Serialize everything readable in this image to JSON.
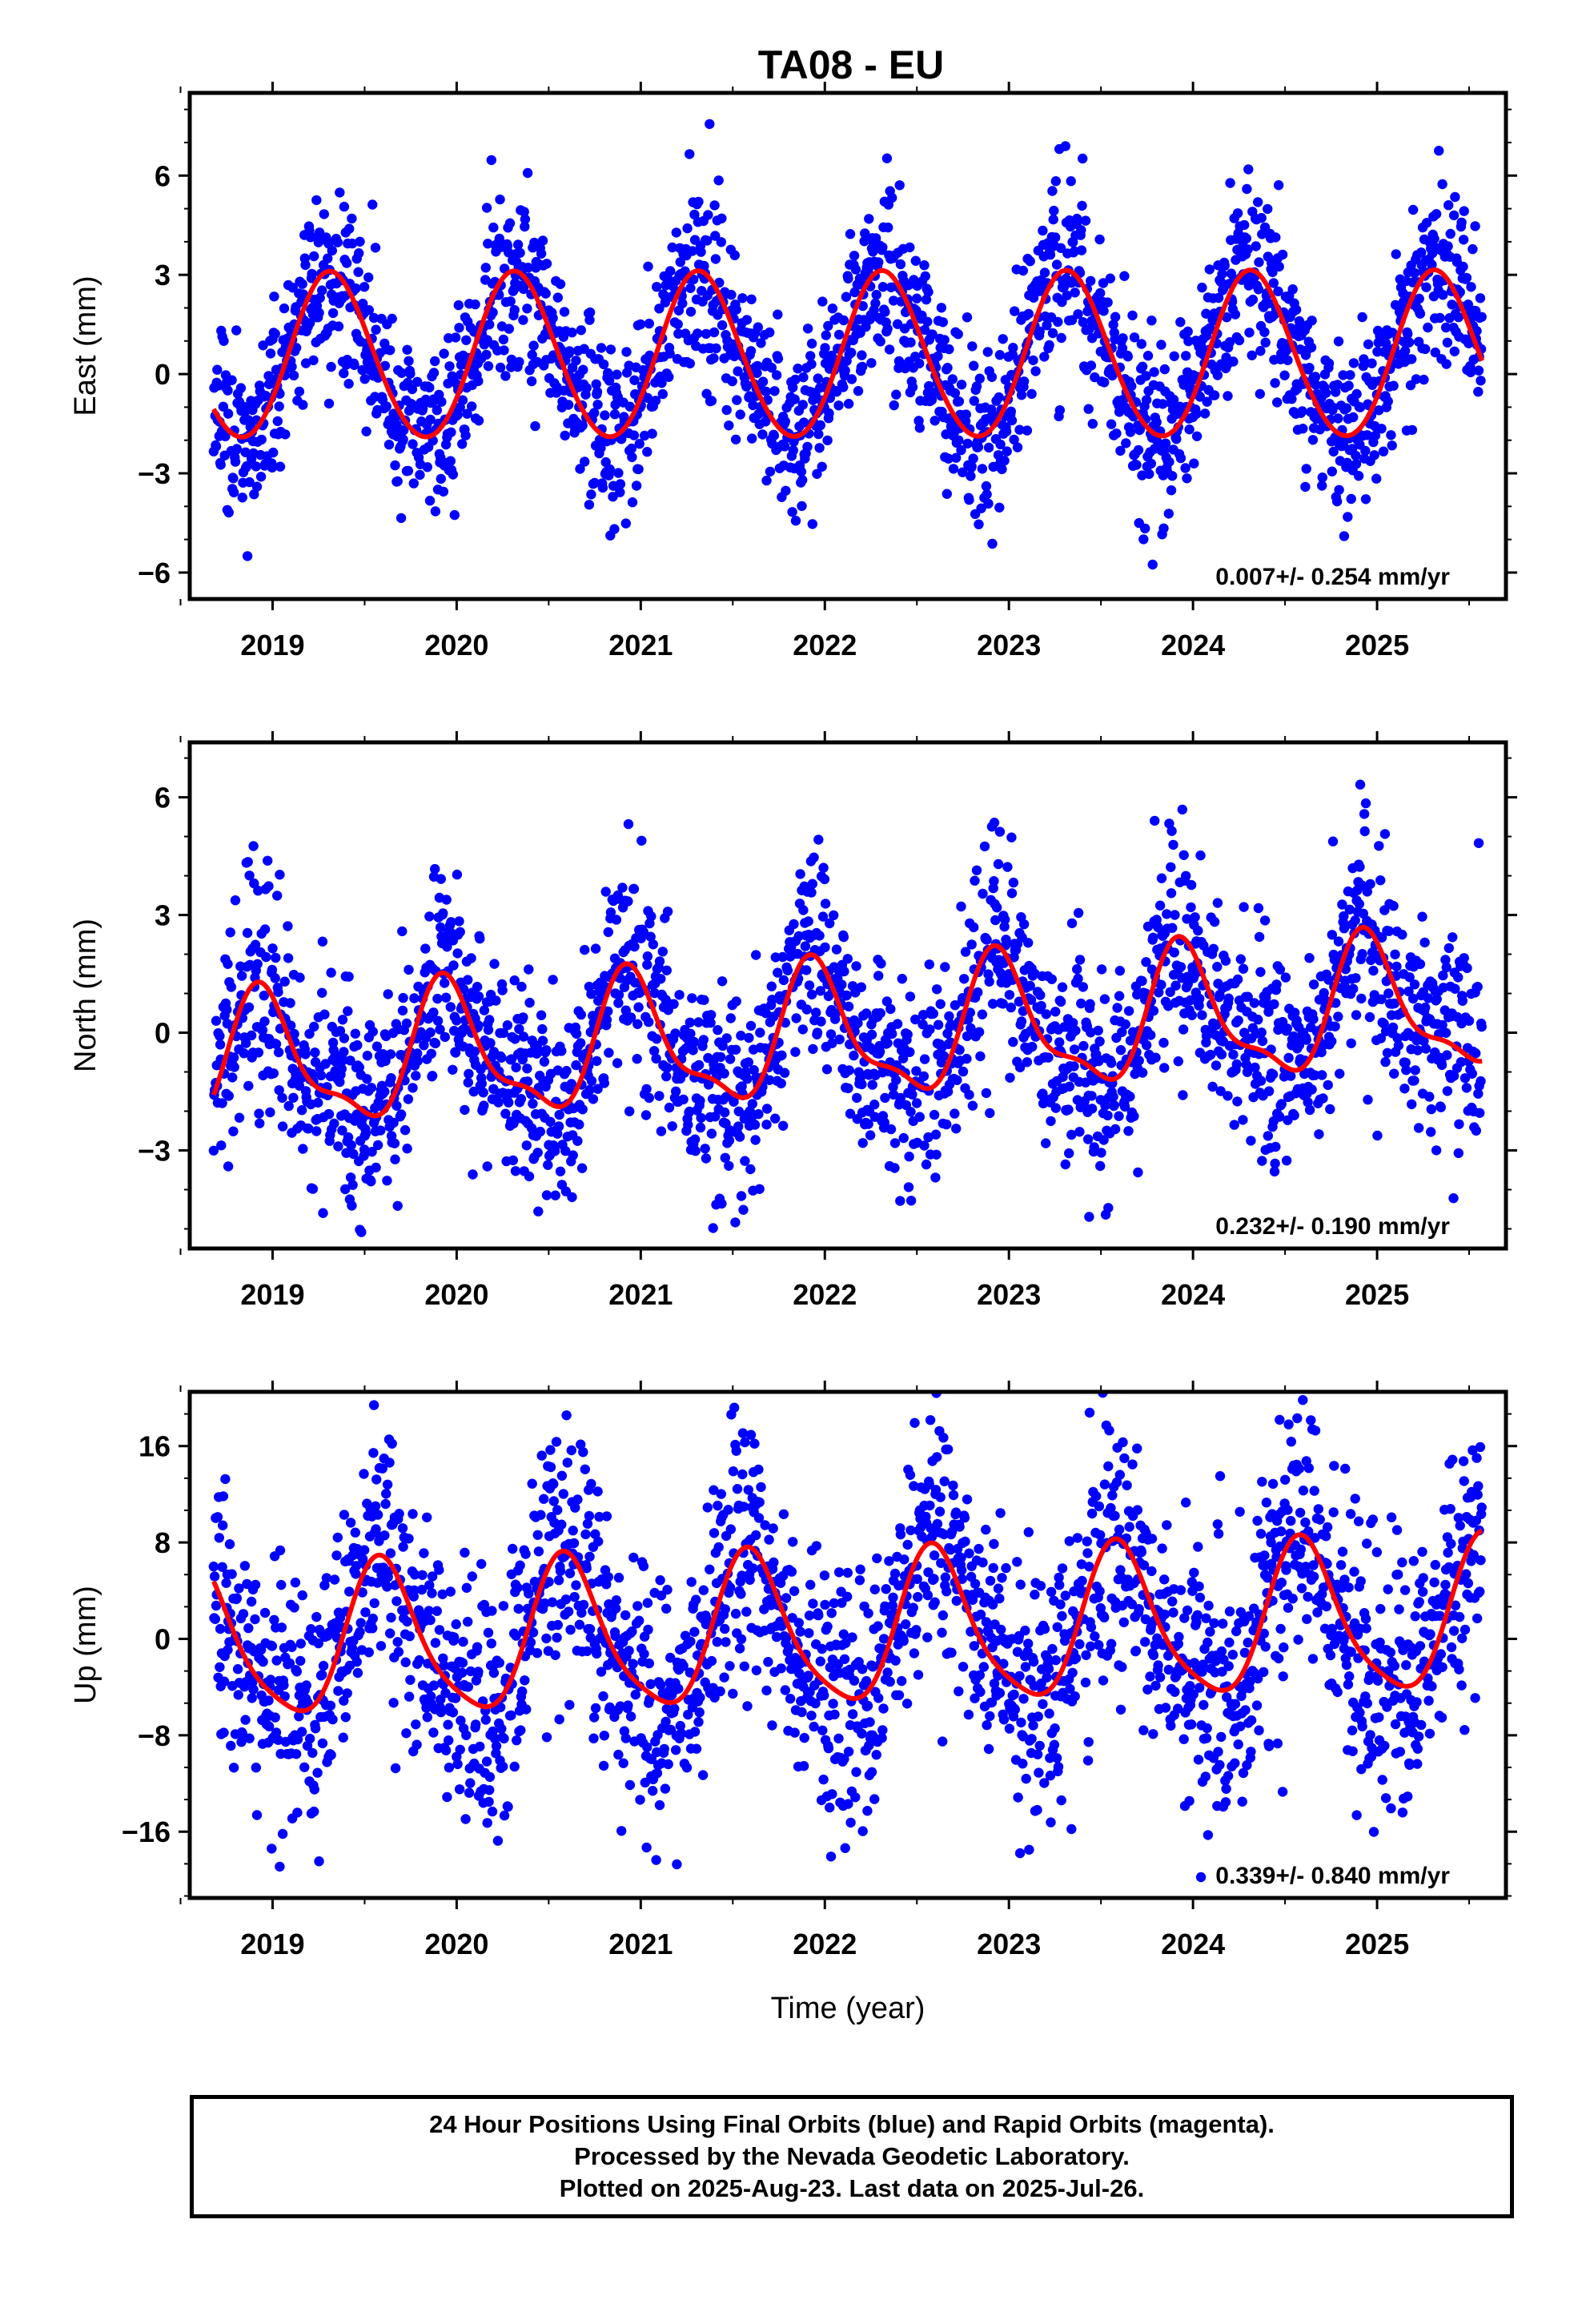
{
  "title": "TA08 - EU",
  "colors": {
    "final_orbits": "#0000ff",
    "fit": "#ff0000",
    "frame": "#000000"
  },
  "chart_data": [
    {
      "type": "scatter",
      "component": "east",
      "ylabel": "East (mm)",
      "xlabel": "",
      "xlim": [
        2018.55,
        2025.7
      ],
      "ylim": [
        -6.8,
        8.5
      ],
      "yticks": [
        -6,
        -3,
        0,
        3,
        6
      ],
      "xticks": [
        2019,
        2020,
        2021,
        2022,
        2023,
        2024,
        2025
      ],
      "annotation": "0.007+/- 0.254 mm/yr",
      "fit": {
        "phase_year": 0.32,
        "amplitude": 2.5,
        "offset": 0.5,
        "harmonic2": 0.15,
        "trend": 0.007
      },
      "scatter": {
        "sigma": 1.1,
        "extra_amp": 1.4,
        "seed": 11
      },
      "series": [
        {
          "name": "24 Hour Positions Using Final Orbits (blue)",
          "color": "#0000ff"
        },
        {
          "name": "fit",
          "color": "#ff0000"
        }
      ]
    },
    {
      "type": "scatter",
      "component": "north",
      "ylabel": "North (mm)",
      "xlabel": "",
      "xlim": [
        2018.55,
        2025.7
      ],
      "ylim": [
        -5.5,
        7.4
      ],
      "yticks": [
        -3,
        0,
        3,
        6
      ],
      "xticks": [
        2019,
        2020,
        2021,
        2022,
        2023,
        2024,
        2025
      ],
      "annotation": "0.232+/- 0.190 mm/yr",
      "fit": {
        "phase_year": 0.95,
        "amplitude": 1.6,
        "offset": -0.1,
        "harmonic2": 0.55,
        "trend": 0.232
      },
      "scatter": {
        "sigma": 1.05,
        "extra_amp": 1.0,
        "seed": 23
      },
      "series": [
        {
          "name": "24 Hour Positions Using Final Orbits (blue)",
          "color": "#0000ff"
        },
        {
          "name": "fit",
          "color": "#ff0000"
        }
      ]
    },
    {
      "type": "scatter",
      "component": "up",
      "ylabel": "Up (mm)",
      "xlabel": "Time (year)",
      "xlim": [
        2018.55,
        2025.7
      ],
      "ylim": [
        -21.5,
        20.5
      ],
      "yticks": [
        -16,
        -8,
        0,
        8,
        16
      ],
      "xticks": [
        2019,
        2020,
        2021,
        2022,
        2023,
        2024,
        2025
      ],
      "annotation": "0.339+/- 0.840 mm/yr",
      "fit": {
        "phase_year": 0.6,
        "amplitude": 6.2,
        "offset": 0.5,
        "harmonic2": 1.2,
        "trend": 0.339
      },
      "scatter": {
        "sigma": 4.2,
        "extra_amp": 3.0,
        "seed": 37
      },
      "series": [
        {
          "name": "24 Hour Positions Using Final Orbits (blue)",
          "color": "#0000ff"
        },
        {
          "name": "fit",
          "color": "#ff0000"
        }
      ]
    }
  ],
  "footer": {
    "line1": "24 Hour Positions Using Final Orbits (blue) and Rapid Orbits (magenta).",
    "line2": "Processed by the Nevada Geodetic Laboratory.",
    "line3": "Plotted on 2025-Aug-23. Last data on 2025-Jul-26."
  }
}
